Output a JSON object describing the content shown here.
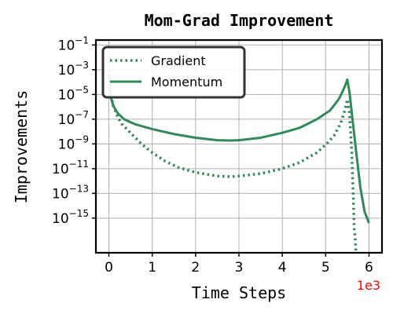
{
  "chart_data": {
    "type": "line",
    "title": "Mom-Grad Improvement",
    "xlabel": "Time Steps",
    "ylabel": "Improvements",
    "x_offset_label": "1e3",
    "x_offset_color": "#ff0000",
    "yscale": "log",
    "xlim": [
      -0.3,
      6.3
    ],
    "ylim_exp": [
      -17.8,
      -0.6
    ],
    "x_ticks": [
      0,
      1,
      2,
      3,
      4,
      5,
      6
    ],
    "x_tick_labels": [
      "0",
      "1",
      "2",
      "3",
      "4",
      "5",
      "6"
    ],
    "y_ticks_exp": [
      -15,
      -13,
      -11,
      -9,
      -7,
      -5,
      -3,
      -1
    ],
    "y_tick_base": "10",
    "y_tick_exps": [
      "−15",
      "−13",
      "−11",
      "−9",
      "−7",
      "−5",
      "−3",
      "−1"
    ],
    "grid": true,
    "legend_position": "top-left",
    "series": [
      {
        "name": "Gradient",
        "color": "#2e8b57",
        "style": "dotted",
        "x": [
          0.0,
          0.05,
          0.1,
          0.2,
          0.3,
          0.5,
          0.75,
          1.0,
          1.3,
          1.6,
          2.0,
          2.5,
          2.8,
          3.0,
          3.5,
          4.0,
          4.4,
          4.8,
          5.05,
          5.2,
          5.35,
          5.45,
          5.5,
          5.55,
          5.6,
          5.64,
          5.66,
          5.68,
          5.7
        ],
        "y_exp": [
          -3.0,
          -5.0,
          -5.9,
          -6.8,
          -7.4,
          -8.1,
          -9.0,
          -9.7,
          -10.4,
          -10.9,
          -11.3,
          -11.6,
          -11.65,
          -11.6,
          -11.4,
          -11.0,
          -10.5,
          -9.7,
          -8.9,
          -8.3,
          -7.3,
          -6.2,
          -5.4,
          -6.5,
          -9.5,
          -13.5,
          -16.0,
          -16.5,
          -17.8
        ]
      },
      {
        "name": "Momentum",
        "color": "#2e8b57",
        "style": "solid",
        "x": [
          0.0,
          0.05,
          0.1,
          0.2,
          0.35,
          0.6,
          1.0,
          1.5,
          2.0,
          2.5,
          2.8,
          3.0,
          3.5,
          4.0,
          4.4,
          4.8,
          5.1,
          5.3,
          5.4,
          5.47,
          5.5,
          5.55,
          5.62,
          5.7,
          5.8,
          5.9,
          6.0
        ],
        "y_exp": [
          -3.5,
          -5.3,
          -5.9,
          -6.5,
          -7.0,
          -7.4,
          -7.8,
          -8.2,
          -8.5,
          -8.7,
          -8.72,
          -8.7,
          -8.5,
          -8.1,
          -7.7,
          -7.0,
          -6.3,
          -5.4,
          -4.7,
          -4.1,
          -3.8,
          -4.8,
          -7.0,
          -9.5,
          -12.5,
          -14.5,
          -15.4
        ]
      }
    ]
  }
}
